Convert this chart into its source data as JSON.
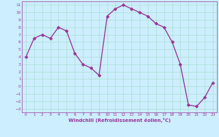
{
  "x": [
    0,
    1,
    2,
    3,
    4,
    5,
    6,
    7,
    8,
    9,
    10,
    11,
    12,
    13,
    14,
    15,
    16,
    17,
    18,
    19,
    20,
    21,
    22,
    23
  ],
  "y": [
    4.0,
    6.5,
    7.0,
    6.5,
    8.0,
    7.5,
    4.5,
    3.0,
    2.5,
    1.5,
    9.5,
    10.5,
    11.0,
    10.5,
    10.0,
    9.5,
    8.5,
    8.0,
    6.0,
    3.0,
    -2.5,
    -2.7,
    -1.5,
    0.5
  ],
  "line_color": "#993399",
  "marker_color": "#993399",
  "bg_color": "#cceeff",
  "grid_color": "#aaddcc",
  "xlabel": "Windchill (Refroidissement éolien,°C)",
  "xlim": [
    -0.5,
    23.5
  ],
  "ylim": [
    -3.5,
    11.5
  ],
  "yticks": [
    11,
    10,
    9,
    8,
    7,
    6,
    5,
    4,
    3,
    2,
    1,
    0,
    -1,
    -2,
    -3
  ],
  "xticks": [
    0,
    1,
    2,
    3,
    4,
    5,
    6,
    7,
    8,
    9,
    10,
    11,
    12,
    13,
    14,
    15,
    16,
    17,
    18,
    19,
    20,
    21,
    22,
    23
  ],
  "font_color": "#993399",
  "axis_color": "#993399",
  "tick_color": "#993399",
  "linewidth": 1.0,
  "markersize": 2.5
}
